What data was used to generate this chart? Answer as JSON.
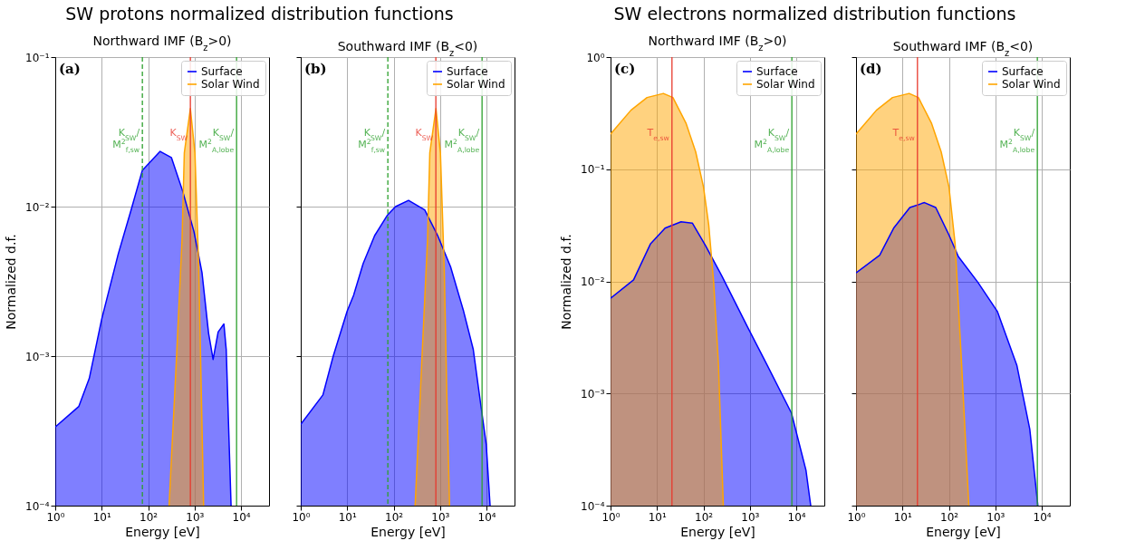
{
  "chart_data": [
    {
      "type": "area",
      "title": "SW protons normalized distribution functions",
      "subtitle": "Northward IMF (B$_{z}$>0)",
      "xlabel": "Energy [eV]",
      "ylabel": "Normalized d.f.",
      "log": "xy",
      "grid": true,
      "legend": "top right",
      "xlim": [
        1,
        40000
      ],
      "ylim": [
        0.0001,
        0.1
      ],
      "xticks": [
        {
          "value": 1,
          "label": "10⁰"
        },
        {
          "value": 10,
          "label": "10¹"
        },
        {
          "value": 100,
          "label": "10²"
        },
        {
          "value": 1000,
          "label": "10³"
        },
        {
          "value": 10000,
          "label": "10⁴"
        }
      ],
      "yticks": [
        {
          "value": 0.0001,
          "label": "10⁻⁴"
        },
        {
          "value": 0.001,
          "label": "10⁻³"
        },
        {
          "value": 0.01,
          "label": "10⁻²"
        },
        {
          "value": 0.1,
          "label": "10⁻¹"
        }
      ],
      "annotations": [
        "(a)"
      ],
      "ref_lines": [
        {
          "axis": "x",
          "value": 75,
          "label": "K$_{SW}$/M$^{2}$$_{f,sw}$",
          "color": "#2ca02c",
          "line_style": "dashed"
        },
        {
          "axis": "x",
          "value": 810,
          "label": "K$_{SW}$",
          "color": "#e8392e"
        },
        {
          "axis": "x",
          "value": 8000,
          "label": "K$_{SW}$/M$^{2}$$_{A,lobe}$",
          "color": "#2ca02c"
        }
      ],
      "series": [
        {
          "name": "Surface",
          "color": "#0000ff",
          "x": [
            1,
            3.2,
            5.4,
            10,
            22.6,
            42.9,
            75,
            181,
            316,
            553,
            968,
            1445,
            2000,
            2500,
            3210,
            4270,
            4790,
            6090
          ],
          "values": [
            0.000336,
            0.00046,
            0.00071,
            0.00177,
            0.0048,
            0.0095,
            0.0175,
            0.0234,
            0.0213,
            0.0127,
            0.0068,
            0.0036,
            0.00142,
            0.00095,
            0.00145,
            0.00164,
            0.00111,
            0.0001
          ]
        },
        {
          "name": "Solar Wind",
          "color": "#ffa500",
          "x": [
            282,
            400,
            537,
            600,
            810,
            1016,
            1230,
            1400,
            1563
          ],
          "values": [
            0.0001,
            0.00087,
            0.0061,
            0.0229,
            0.0453,
            0.0229,
            0.00376,
            0.00053,
            0.0001
          ]
        }
      ]
    },
    {
      "type": "area",
      "subtitle": "Southward IMF (B$_{z}$<0)",
      "xlabel": "Energy [eV]",
      "log": "xy",
      "grid": true,
      "legend": "top right",
      "tick_labels": "x",
      "xlim": [
        1,
        40000
      ],
      "ylim": [
        0.0001,
        0.1
      ],
      "xticks": [
        {
          "value": 1,
          "label": "10⁰"
        },
        {
          "value": 10,
          "label": "10¹"
        },
        {
          "value": 100,
          "label": "10²"
        },
        {
          "value": 1000,
          "label": "10³"
        },
        {
          "value": 10000,
          "label": "10⁴"
        }
      ],
      "yticks": [
        {
          "value": 0.0001,
          "label": null
        },
        {
          "value": 0.001,
          "label": null
        },
        {
          "value": 0.01,
          "label": null
        },
        {
          "value": 0.1,
          "label": null
        }
      ],
      "annotations": [
        "(b)"
      ],
      "ref_lines": [
        {
          "axis": "x",
          "value": 75,
          "label": "K$_{SW}$/M$^{2}$$_{f,sw}$",
          "color": "#2ca02c",
          "line_style": "dashed"
        },
        {
          "axis": "x",
          "value": 810,
          "label": "K$_{SW}$",
          "color": "#e8392e"
        },
        {
          "axis": "x",
          "value": 8000,
          "label": "K$_{SW}$/M$^{2}$$_{A,lobe}$",
          "color": "#2ca02c"
        }
      ],
      "series": [
        {
          "name": "Surface",
          "color": "#0000ff",
          "x": [
            1,
            3,
            5,
            10,
            13.7,
            22,
            39,
            74,
            110,
            209,
            467,
            887,
            1683,
            3200,
            5170,
            7140,
            9840,
            11900
          ],
          "values": [
            0.00035,
            0.00055,
            0.001,
            0.002,
            0.00255,
            0.00415,
            0.0064,
            0.0088,
            0.01,
            0.011,
            0.0095,
            0.0064,
            0.00395,
            0.002,
            0.00111,
            0.00053,
            0.000257,
            0.0001
          ]
        },
        {
          "name": "Solar Wind",
          "color": "#ffa500",
          "x": [
            290,
            400,
            537,
            600,
            815,
            1016,
            1230,
            1400,
            1600
          ],
          "values": [
            0.0001,
            0.00087,
            0.0061,
            0.0229,
            0.0453,
            0.0229,
            0.00376,
            0.00053,
            0.0001
          ]
        }
      ]
    },
    {
      "type": "area",
      "title": "SW electrons normalized distribution functions",
      "subtitle": "Northward IMF (B$_{z}$>0)",
      "xlabel": "Energy [eV]",
      "ylabel": "Normalized d.f.",
      "log": "xy",
      "grid": true,
      "legend": "top right",
      "xlim": [
        1,
        40000
      ],
      "ylim": [
        0.0001,
        1
      ],
      "xticks": [
        {
          "value": 1,
          "label": "10⁰"
        },
        {
          "value": 10,
          "label": "10¹"
        },
        {
          "value": 100,
          "label": "10²"
        },
        {
          "value": 1000,
          "label": "10³"
        },
        {
          "value": 10000,
          "label": "10⁴"
        }
      ],
      "yticks": [
        {
          "value": 0.0001,
          "label": "10⁻⁴"
        },
        {
          "value": 0.001,
          "label": "10⁻³"
        },
        {
          "value": 0.01,
          "label": "10⁻²"
        },
        {
          "value": 0.1,
          "label": "10⁻¹"
        },
        {
          "value": 1,
          "label": "10⁰"
        }
      ],
      "annotations": [
        "(c)"
      ],
      "ref_lines": [
        {
          "axis": "x",
          "value": 21,
          "label": "T$_{e,sw}$",
          "color": "#e8392e"
        },
        {
          "axis": "x",
          "value": 8000,
          "label": "K$_{SW}$/M$^{2}$$_{A,lobe}$",
          "color": "#2ca02c"
        }
      ],
      "series": [
        {
          "name": "Surface",
          "color": "#0000ff",
          "x": [
            1,
            3.13,
            7.2,
            14.9,
            33,
            58,
            111,
            248,
            895,
            2350,
            7830,
            16100,
            20400
          ],
          "values": [
            0.00706,
            0.0103,
            0.0215,
            0.0298,
            0.034,
            0.033,
            0.0208,
            0.0112,
            0.0039,
            0.00179,
            0.00067,
            0.000207,
            0.0001
          ]
        },
        {
          "name": "Solar Wind",
          "color": "#ffa500",
          "x": [
            1,
            2.75,
            6.1,
            13.7,
            22,
            42,
            68,
            100,
            130,
            166,
            211,
            268
          ],
          "values": [
            0.206,
            0.336,
            0.436,
            0.474,
            0.436,
            0.258,
            0.143,
            0.0698,
            0.0318,
            0.0098,
            0.00179,
            0.0001
          ]
        }
      ]
    },
    {
      "type": "area",
      "subtitle": "Southward IMF (B$_{z}$<0)",
      "xlabel": "Energy [eV]",
      "log": "xy",
      "grid": true,
      "legend": "top right",
      "tick_labels": "x",
      "xlim": [
        1,
        40000
      ],
      "ylim": [
        0.0001,
        1
      ],
      "xticks": [
        {
          "value": 1,
          "label": "10⁰"
        },
        {
          "value": 10,
          "label": "10¹"
        },
        {
          "value": 100,
          "label": "10²"
        },
        {
          "value": 1000,
          "label": "10³"
        },
        {
          "value": 10000,
          "label": "10⁴"
        }
      ],
      "yticks": [
        {
          "value": 0.0001,
          "label": null
        },
        {
          "value": 0.001,
          "label": null
        },
        {
          "value": 0.01,
          "label": null
        },
        {
          "value": 0.1,
          "label": null
        },
        {
          "value": 1,
          "label": null
        }
      ],
      "annotations": [
        "(d)"
      ],
      "ref_lines": [
        {
          "axis": "x",
          "value": 21,
          "label": "T$_{e,sw}$",
          "color": "#e8392e"
        },
        {
          "axis": "x",
          "value": 8000,
          "label": "K$_{SW}$/M$^{2}$$_{A,lobe}$",
          "color": "#2ca02c"
        }
      ],
      "series": [
        {
          "name": "Surface",
          "color": "#0000ff",
          "x": [
            1,
            3.23,
            6.45,
            14.4,
            29.7,
            52,
            99,
            160,
            421,
            1100,
            2890,
            5500,
            8220
          ],
          "values": [
            0.0119,
            0.0171,
            0.0298,
            0.0456,
            0.0504,
            0.0456,
            0.0262,
            0.0166,
            0.0098,
            0.0054,
            0.00179,
            0.00048,
            0.0001
          ]
        },
        {
          "name": "Solar Wind",
          "color": "#ffa500",
          "x": [
            1,
            2.75,
            6.1,
            13.9,
            22,
            42,
            68,
            100,
            136,
            188,
            268
          ],
          "values": [
            0.206,
            0.336,
            0.436,
            0.474,
            0.436,
            0.258,
            0.143,
            0.0698,
            0.0215,
            0.00179,
            0.0001
          ]
        }
      ]
    }
  ]
}
